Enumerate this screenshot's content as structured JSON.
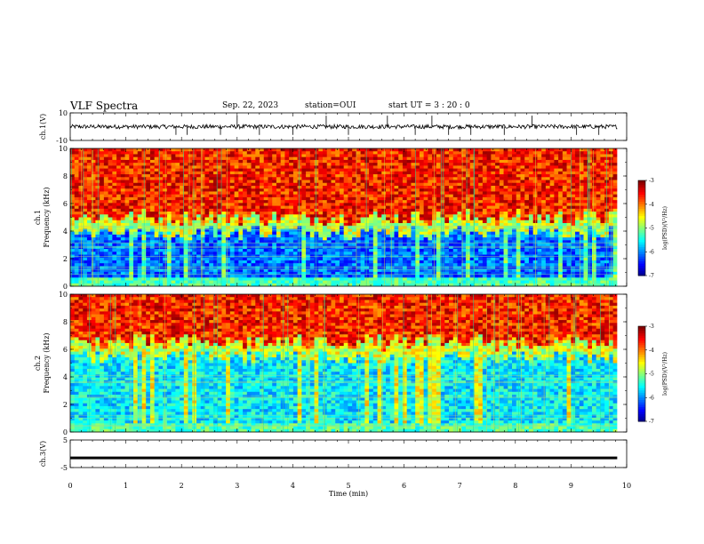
{
  "header": {
    "title": "VLF Spectra",
    "date": "Sep. 22, 2023",
    "station": "station=OUI",
    "start_ut": "start UT =  3 : 20 : 0"
  },
  "chart_data": [
    {
      "type": "line",
      "ylabel": "ch.1(V)",
      "ylim": [
        -10,
        10
      ],
      "yticks": [
        "10",
        "-10"
      ],
      "xlim": [
        0,
        10
      ],
      "series": [
        {
          "baseline": 0,
          "noise_amplitude": 1.5,
          "spikes": [
            1.9,
            2.1,
            2.7,
            3.0,
            3.4,
            4.0,
            4.6,
            5.0,
            5.7,
            6.2,
            6.5,
            6.8,
            7.2,
            7.8,
            8.3,
            9.1,
            9.5
          ]
        }
      ]
    },
    {
      "type": "heatmap",
      "ylabel": "ch.1\nFrequency (kHz)",
      "ylim": [
        0,
        10
      ],
      "yticks": [
        "0",
        "2",
        "4",
        "6",
        "8",
        "10"
      ],
      "xlim": [
        0,
        10
      ],
      "data_xmax": 9.83,
      "cutoff_khz": 5.0,
      "colorbar": {
        "label": "log(PSD)(V²/Hz)",
        "range": [
          -7,
          -3
        ],
        "ticks": [
          "-3",
          "-4",
          "-5",
          "-6",
          "-7"
        ]
      }
    },
    {
      "type": "heatmap",
      "ylabel": "ch.2\nFrequency (kHz)",
      "ylim": [
        0,
        10
      ],
      "yticks": [
        "0",
        "2",
        "4",
        "6",
        "8",
        "10"
      ],
      "xlim": [
        0,
        10
      ],
      "data_xmax": 9.83,
      "cutoff_khz": 6.5,
      "colorbar": {
        "label": "log(PSD)(V²/Hz)",
        "range": [
          -7,
          -3
        ],
        "ticks": [
          "-3",
          "-4",
          "-5",
          "-6",
          "-7"
        ]
      }
    },
    {
      "type": "line",
      "ylabel": "ch.3(V)",
      "ylim": [
        -5,
        5
      ],
      "yticks": [
        "5",
        "-5"
      ],
      "xlim": [
        0,
        10
      ],
      "series": [
        {
          "constant": -1.5
        }
      ]
    }
  ],
  "xaxis": {
    "label": "Time (min)",
    "ticks": [
      "0",
      "1",
      "2",
      "3",
      "4",
      "5",
      "6",
      "7",
      "8",
      "9",
      "10"
    ]
  }
}
